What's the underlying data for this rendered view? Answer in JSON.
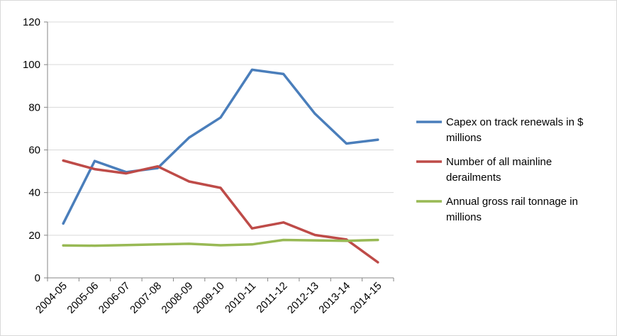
{
  "chart_data": {
    "type": "line",
    "title": "",
    "xlabel": "",
    "ylabel": "",
    "categories": [
      "2004-05",
      "2005-06",
      "2006-07",
      "2007-08",
      "2008-09",
      "2009-10",
      "2010-11",
      "2011-12",
      "2012-13",
      "2013-14",
      "2014-15"
    ],
    "ylim": [
      0,
      120
    ],
    "yticks": [
      0,
      20,
      40,
      60,
      80,
      100,
      120
    ],
    "grid": true,
    "legend_position": "right",
    "series": [
      {
        "name": "Capex on track renewals in $ millions",
        "legend_lines": [
          "Capex on track renewals in $",
          "millions"
        ],
        "color": "#4a7ebb",
        "values": [
          25.5,
          54.8,
          49.6,
          51.5,
          65.8,
          75.2,
          97.6,
          95.6,
          77.0,
          63.0,
          64.8
        ]
      },
      {
        "name": "Number of all mainline derailments",
        "legend_lines": [
          "Number of all mainline",
          "derailments"
        ],
        "color": "#be4b48",
        "values": [
          55.0,
          51.0,
          49.0,
          52.3,
          45.2,
          42.2,
          23.2,
          26.0,
          20.1,
          18.0,
          7.3
        ]
      },
      {
        "name": "Annual gross rail tonnage in millions",
        "legend_lines": [
          "Annual gross rail tonnage in",
          "millions"
        ],
        "color": "#98b954",
        "values": [
          15.2,
          15.1,
          15.4,
          15.7,
          16.0,
          15.3,
          15.7,
          17.8,
          17.6,
          17.4,
          17.8
        ]
      }
    ]
  }
}
